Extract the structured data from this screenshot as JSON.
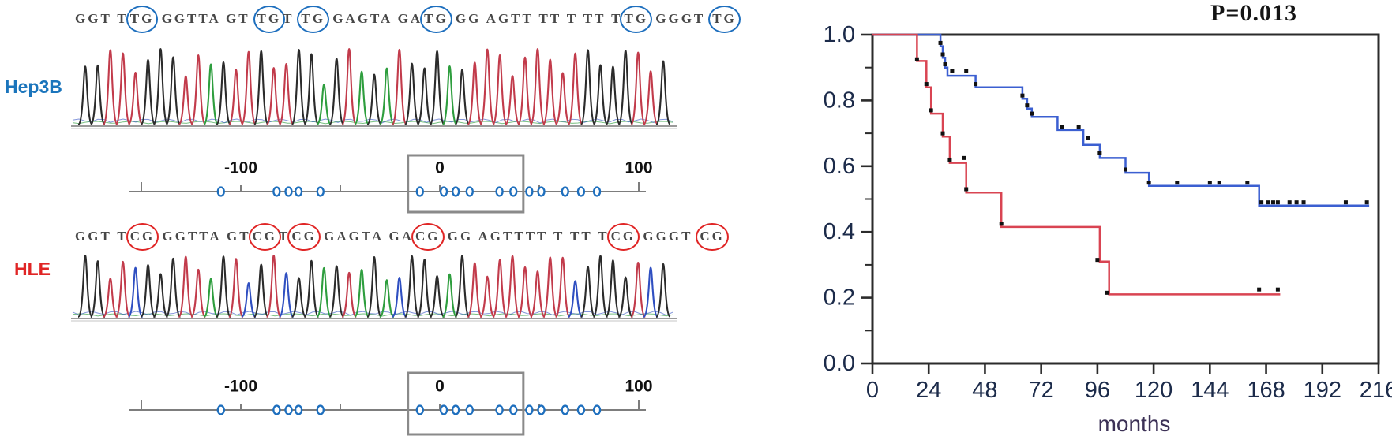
{
  "figure": {
    "left": {
      "rows": [
        {
          "id": "hep3b-cpg-map",
          "label": "Hep3B",
          "label_color": "#1b75bc",
          "circle_color": "#1e6fbe",
          "sequence_tokens": [
            {
              "text": "GGT T",
              "circled": false
            },
            {
              "text": "TG",
              "circled": true
            },
            {
              "text": " GGTTA GT ",
              "circled": false
            },
            {
              "text": "TG",
              "circled": true
            },
            {
              "text": "T ",
              "circled": false
            },
            {
              "text": "TG",
              "circled": true
            },
            {
              "text": " GAGTA GA",
              "circled": false
            },
            {
              "text": "TG",
              "circled": true
            },
            {
              "text": " GG AGTT TT T TT T",
              "circled": false
            },
            {
              "text": "TG",
              "circled": true
            },
            {
              "text": " GGGT ",
              "circled": false
            },
            {
              "text": "TG",
              "circled": true
            }
          ]
        },
        {
          "id": "hle-cpg-map",
          "label": "HLE",
          "label_color": "#e02525",
          "circle_color": "#e02525",
          "sequence_tokens": [
            {
              "text": "GGT T",
              "circled": false
            },
            {
              "text": "CG",
              "circled": true
            },
            {
              "text": " GGTTA GT",
              "circled": false
            },
            {
              "text": "CG",
              "circled": true
            },
            {
              "text": "T",
              "circled": false
            },
            {
              "text": "CG",
              "circled": true
            },
            {
              "text": " GAGTA GA",
              "circled": false
            },
            {
              "text": "CG",
              "circled": true
            },
            {
              "text": " GG AGTTTT T TT T",
              "circled": false
            },
            {
              "text": "CG",
              "circled": true
            },
            {
              "text": " GGGT ",
              "circled": false
            },
            {
              "text": "CG",
              "circled": true
            }
          ]
        }
      ],
      "base_colors": {
        "A": "#2e9e3e",
        "C": "#2f4fc1",
        "G": "#2b2b2b",
        "T": "#c23b4b"
      }
    }
  },
  "chart_data": [
    {
      "id": "hep3b-cpg-map",
      "type": "scatter",
      "description": "CpG site position map, Hep3B",
      "marker": "open-circle",
      "marker_color": "#1e6fbe",
      "tick_labels": [
        {
          "text": "-100",
          "u": -100
        },
        {
          "text": "0",
          "u": 0
        },
        {
          "text": "100",
          "u": 100
        }
      ],
      "ticks": [
        -150,
        -100,
        -50,
        0,
        50,
        100
      ],
      "points": [
        -110,
        -82,
        -76,
        -71,
        -60,
        -10,
        2,
        8,
        15,
        30,
        37,
        45,
        51,
        63,
        71,
        79
      ],
      "highlight_box": [
        -16,
        42
      ]
    },
    {
      "id": "hle-cpg-map",
      "type": "scatter",
      "description": "CpG site position map, HLE",
      "marker": "open-circle",
      "marker_color": "#1e6fbe",
      "tick_labels": [
        {
          "text": "-100",
          "u": -100
        },
        {
          "text": "0",
          "u": 0
        },
        {
          "text": "100",
          "u": 100
        }
      ],
      "ticks": [
        -150,
        -100,
        -50,
        0,
        50,
        100
      ],
      "points": [
        -110,
        -82,
        -76,
        -71,
        -60,
        -10,
        2,
        8,
        15,
        30,
        37,
        45,
        51,
        63,
        71,
        79
      ],
      "highlight_box": [
        -16,
        42
      ]
    },
    {
      "id": "survival-plot",
      "type": "line",
      "step": true,
      "title": "P=0.013",
      "xlabel": "months",
      "xlim": [
        0,
        216
      ],
      "ylim": [
        0.0,
        1.0
      ],
      "x_ticks": [
        0,
        24,
        48,
        72,
        96,
        120,
        144,
        168,
        192,
        216
      ],
      "y_ticks": [
        0.0,
        0.2,
        0.4,
        0.6,
        0.8,
        1.0
      ],
      "y_minor_ticks": [
        0.1,
        0.3,
        0.5,
        0.7,
        0.9
      ],
      "grid": false,
      "series": [
        {
          "name": "blue-group",
          "color": "#3b5fd1",
          "steps": [
            [
              0,
              1.0
            ],
            [
              29,
              0.965
            ],
            [
              30,
              0.93
            ],
            [
              31,
              0.9
            ],
            [
              32,
              0.875
            ],
            [
              44,
              0.84
            ],
            [
              64,
              0.805
            ],
            [
              66,
              0.775
            ],
            [
              68,
              0.75
            ],
            [
              79,
              0.71
            ],
            [
              90,
              0.665
            ],
            [
              97,
              0.625
            ],
            [
              108,
              0.58
            ],
            [
              118,
              0.54
            ],
            [
              165,
              0.48
            ]
          ],
          "end": 212,
          "censors": [
            [
              29,
              0.975
            ],
            [
              30,
              0.94
            ],
            [
              31,
              0.91
            ],
            [
              34,
              0.89
            ],
            [
              40,
              0.89
            ],
            [
              44,
              0.85
            ],
            [
              64,
              0.815
            ],
            [
              66,
              0.785
            ],
            [
              68,
              0.76
            ],
            [
              81,
              0.72
            ],
            [
              88,
              0.72
            ],
            [
              92,
              0.685
            ],
            [
              97,
              0.64
            ],
            [
              108,
              0.59
            ],
            [
              118,
              0.55
            ],
            [
              130,
              0.55
            ],
            [
              144,
              0.55
            ],
            [
              148,
              0.55
            ],
            [
              160,
              0.55
            ],
            [
              166,
              0.49
            ],
            [
              169,
              0.49
            ],
            [
              171,
              0.49
            ],
            [
              173,
              0.49
            ],
            [
              178,
              0.49
            ],
            [
              181,
              0.49
            ],
            [
              184,
              0.49
            ],
            [
              202,
              0.49
            ],
            [
              211,
              0.49
            ]
          ]
        },
        {
          "name": "red-group",
          "color": "#d94452",
          "steps": [
            [
              0,
              1.0
            ],
            [
              19,
              0.92
            ],
            [
              23,
              0.84
            ],
            [
              25,
              0.76
            ],
            [
              30,
              0.69
            ],
            [
              33,
              0.61
            ],
            [
              40,
              0.52
            ],
            [
              55,
              0.415
            ],
            [
              97,
              0.31
            ],
            [
              101,
              0.21
            ]
          ],
          "end": 174,
          "censors": [
            [
              19,
              0.925
            ],
            [
              23,
              0.85
            ],
            [
              25,
              0.77
            ],
            [
              30,
              0.7
            ],
            [
              33,
              0.62
            ],
            [
              39,
              0.625
            ],
            [
              40,
              0.53
            ],
            [
              55,
              0.425
            ],
            [
              96,
              0.315
            ],
            [
              100,
              0.215
            ],
            [
              165,
              0.225
            ],
            [
              173,
              0.225
            ]
          ]
        }
      ]
    }
  ]
}
